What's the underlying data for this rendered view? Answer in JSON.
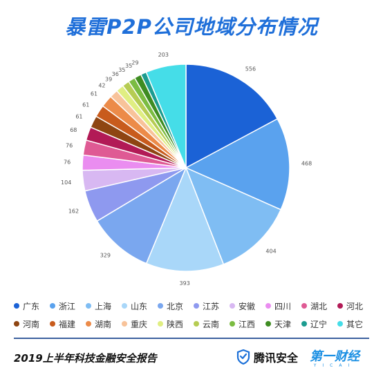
{
  "title": "暴雷P2P公司地域分布情况",
  "chart_data": {
    "type": "pie",
    "title": "暴雷P2P公司地域分布情况",
    "slices": [
      {
        "label": "广东",
        "value": 556,
        "color": "#1b62d6"
      },
      {
        "label": "浙江",
        "value": 468,
        "color": "#5aa2ee"
      },
      {
        "label": "上海",
        "value": 404,
        "color": "#7fbdf3"
      },
      {
        "label": "山东",
        "value": 393,
        "color": "#a9d7f9"
      },
      {
        "label": "北京",
        "value": 329,
        "color": "#7aa7ef"
      },
      {
        "label": "江苏",
        "value": 162,
        "color": "#8e99ef"
      },
      {
        "label": "安徽",
        "value": 104,
        "color": "#d8b8f2"
      },
      {
        "label": "四川",
        "value": 76,
        "color": "#ea8df0"
      },
      {
        "label": "湖北",
        "value": 76,
        "color": "#df5a94"
      },
      {
        "label": "河北",
        "value": 68,
        "color": "#b21a56"
      },
      {
        "label": "河南",
        "value": 61,
        "color": "#8e4512"
      },
      {
        "label": "福建",
        "value": 61,
        "color": "#c85b1c"
      },
      {
        "label": "湖南",
        "value": 61,
        "color": "#ec8b49"
      },
      {
        "label": "重庆",
        "value": 42,
        "color": "#f8c39a"
      },
      {
        "label": "陕西",
        "value": 39,
        "color": "#e0ee82"
      },
      {
        "label": "云南",
        "value": 36,
        "color": "#b6cc53"
      },
      {
        "label": "江西",
        "value": 35,
        "color": "#7bbc42"
      },
      {
        "label": "天津",
        "value": 35,
        "color": "#3e8c22"
      },
      {
        "label": "辽宁",
        "value": 29,
        "color": "#1c9c90"
      },
      {
        "label": "其它",
        "value": 203,
        "color": "#45dde8"
      }
    ],
    "legend_position": "bottom"
  },
  "footer": {
    "report": "2019上半年科技金融安全报告",
    "brand_a": "腾讯安全",
    "brand_b": "第一财经",
    "brand_b_sub": "YICAI"
  }
}
